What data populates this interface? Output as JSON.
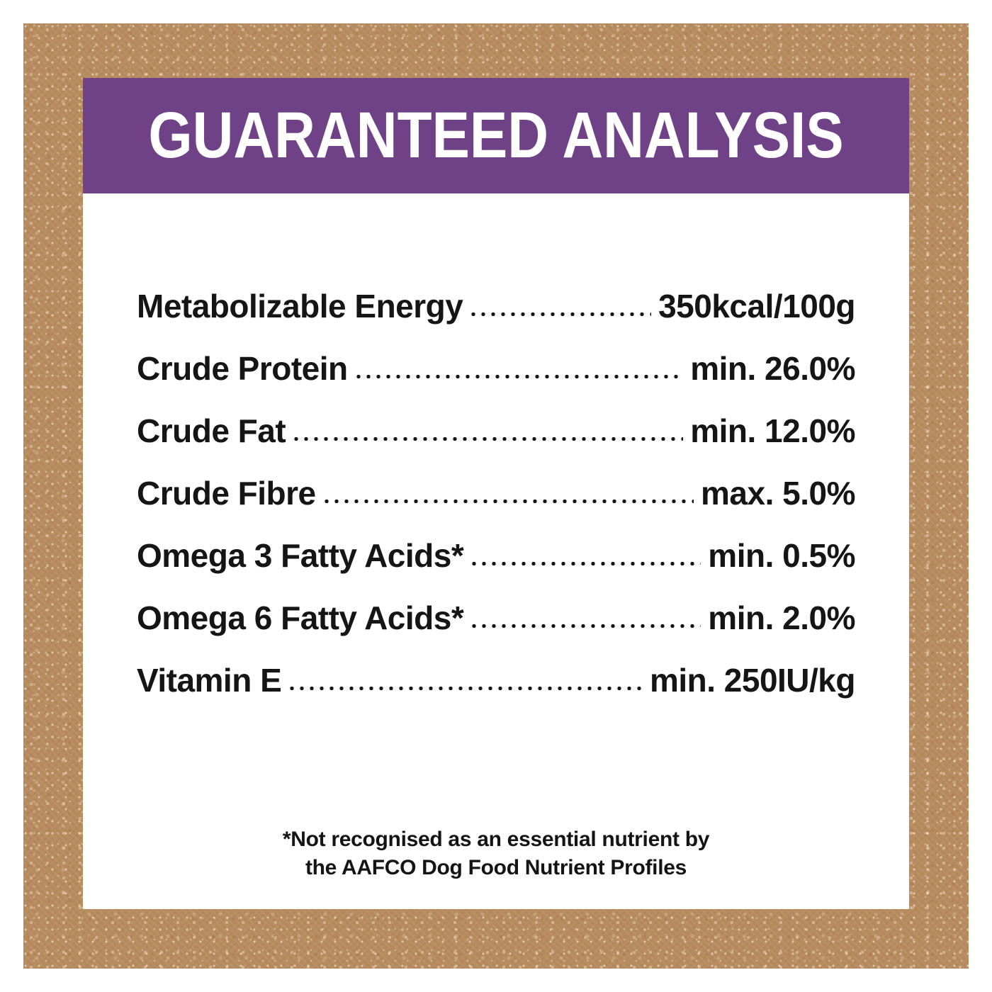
{
  "header": {
    "title": "GUARANTEED ANALYSIS"
  },
  "colors": {
    "frame_brown": "#b78b5e",
    "frame_speckle_light": "#e8cfad",
    "header_purple": "#6f4187",
    "panel_white": "#ffffff",
    "text_black": "#151515"
  },
  "table": {
    "rows": [
      {
        "label": "Metabolizable Energy",
        "value": "350kcal/100g"
      },
      {
        "label": "Crude Protein",
        "value": "min. 26.0%"
      },
      {
        "label": "Crude Fat",
        "value": "min. 12.0%"
      },
      {
        "label": "Crude Fibre",
        "value": "max. 5.0%"
      },
      {
        "label": "Omega 3 Fatty Acids*",
        "value": "min. 0.5%"
      },
      {
        "label": "Omega 6 Fatty Acids*",
        "value": "min. 2.0%"
      },
      {
        "label": "Vitamin E",
        "value": "min. 250IU/kg"
      }
    ]
  },
  "footnote": {
    "line1": "*Not recognised as an essential nutrient by",
    "line2": "the AAFCO Dog Food Nutrient Profiles"
  }
}
